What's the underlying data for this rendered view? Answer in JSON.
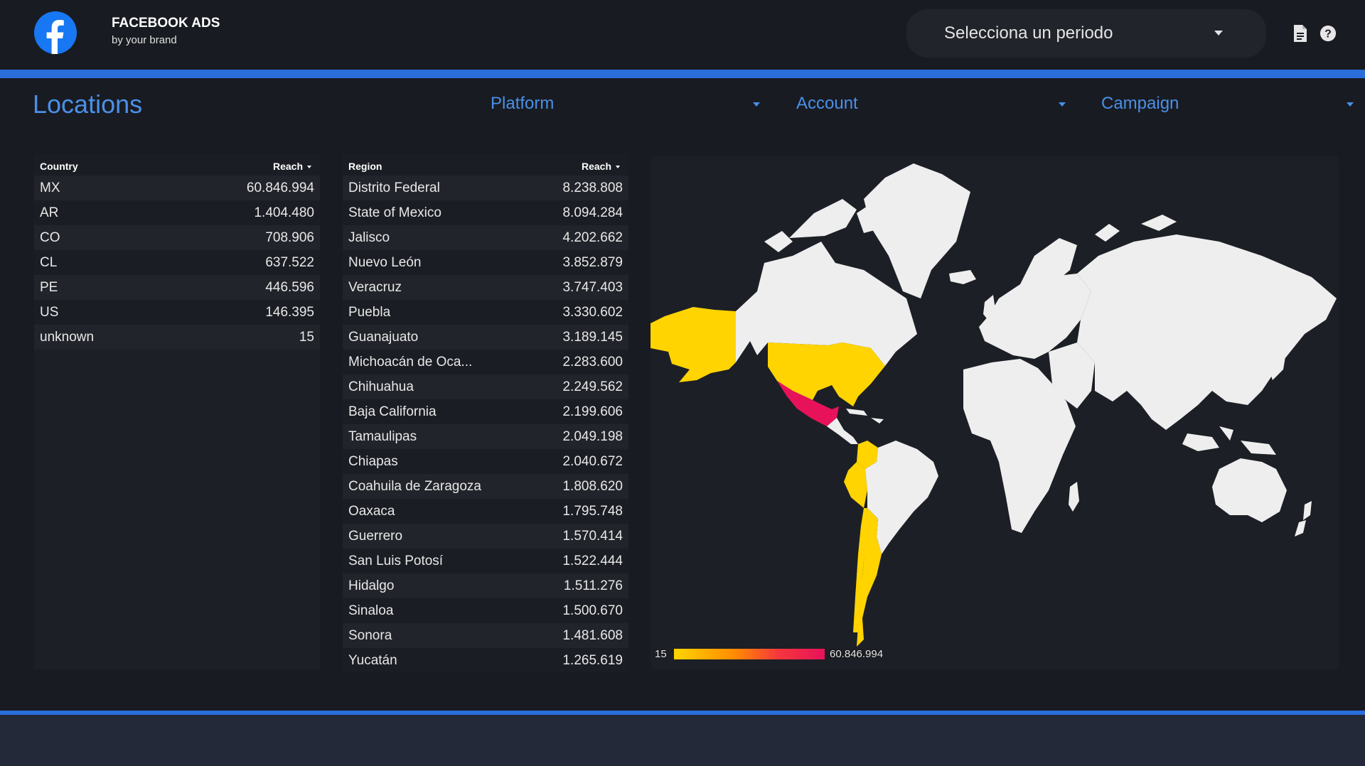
{
  "header": {
    "brand_title": "FACEBOOK ADS",
    "brand_subtitle": "by your brand",
    "period_label": "Selecciona un periodo",
    "icons": [
      "facebook-logo-icon",
      "document-icon",
      "help-icon"
    ]
  },
  "page": {
    "title": "Locations",
    "filters": {
      "platform": "Platform",
      "account": "Account",
      "campaign": "Campaign"
    }
  },
  "country_table": {
    "headers": [
      "Country",
      "Reach"
    ],
    "sorted_by": "Reach",
    "rows": [
      {
        "name": "MX",
        "value": "60.846.994"
      },
      {
        "name": "AR",
        "value": "1.404.480"
      },
      {
        "name": "CO",
        "value": "708.906"
      },
      {
        "name": "CL",
        "value": "637.522"
      },
      {
        "name": "PE",
        "value": "446.596"
      },
      {
        "name": "US",
        "value": "146.395"
      },
      {
        "name": "unknown",
        "value": "15"
      }
    ]
  },
  "region_table": {
    "headers": [
      "Region",
      "Reach"
    ],
    "sorted_by": "Reach",
    "rows": [
      {
        "name": "Distrito Federal",
        "value": "8.238.808"
      },
      {
        "name": "State of Mexico",
        "value": "8.094.284"
      },
      {
        "name": "Jalisco",
        "value": "4.202.662"
      },
      {
        "name": "Nuevo León",
        "value": "3.852.879"
      },
      {
        "name": "Veracruz",
        "value": "3.747.403"
      },
      {
        "name": "Puebla",
        "value": "3.330.602"
      },
      {
        "name": "Guanajuato",
        "value": "3.189.145"
      },
      {
        "name": "Michoacán de Oca...",
        "value": "2.283.600"
      },
      {
        "name": "Chihuahua",
        "value": "2.249.562"
      },
      {
        "name": "Baja California",
        "value": "2.199.606"
      },
      {
        "name": "Tamaulipas",
        "value": "2.049.198"
      },
      {
        "name": "Chiapas",
        "value": "2.040.672"
      },
      {
        "name": "Coahuila de Zaragoza",
        "value": "1.808.620"
      },
      {
        "name": "Oaxaca",
        "value": "1.795.748"
      },
      {
        "name": "Guerrero",
        "value": "1.570.414"
      },
      {
        "name": "San Luis Potosí",
        "value": "1.522.444"
      },
      {
        "name": "Hidalgo",
        "value": "1.511.276"
      },
      {
        "name": "Sinaloa",
        "value": "1.500.670"
      },
      {
        "name": "Sonora",
        "value": "1.481.608"
      },
      {
        "name": "Yucatán",
        "value": "1.265.619"
      }
    ]
  },
  "map": {
    "legend_min": "15",
    "legend_max": "60.846.994",
    "colors": {
      "low": "#ffd400",
      "high": "#e8125b",
      "no_data": "#eeeeee",
      "accent": "#2a6edb"
    }
  }
}
